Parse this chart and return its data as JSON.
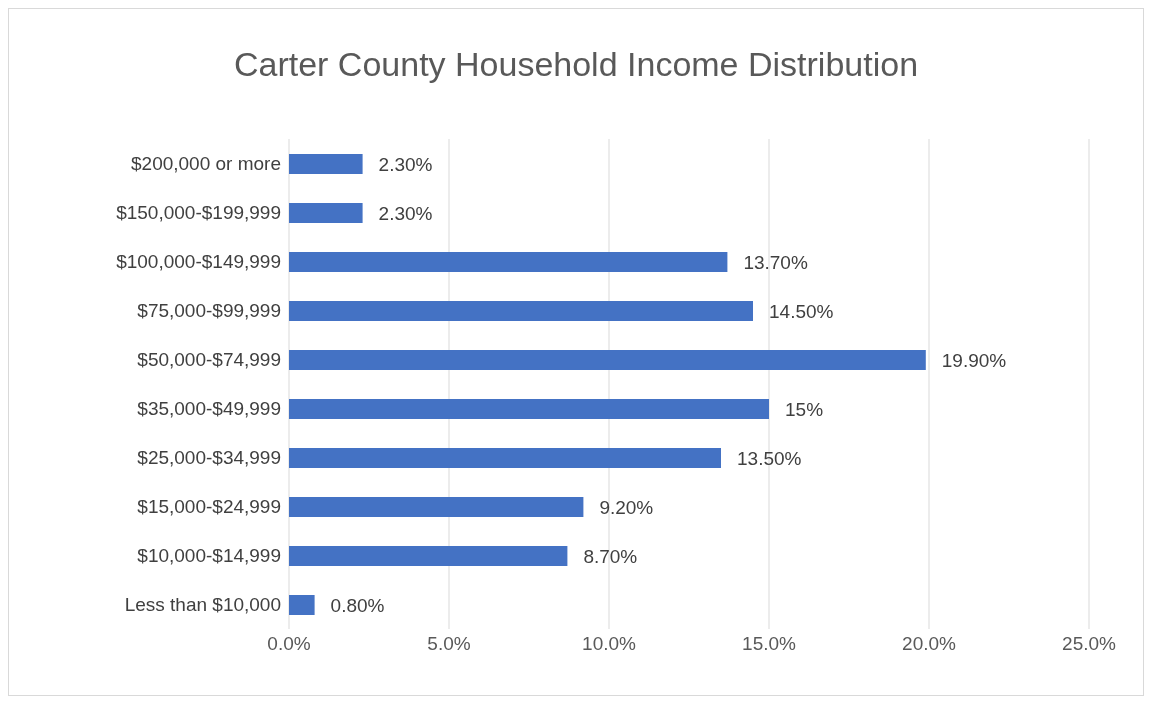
{
  "chart_data": {
    "type": "bar",
    "orientation": "horizontal",
    "title": "Carter County Household Income Distribution",
    "categories": [
      "$200,000 or more",
      "$150,000-$199,999",
      "$100,000-$149,999",
      "$75,000-$99,999",
      "$50,000-$74,999",
      "$35,000-$49,999",
      "$25,000-$34,999",
      "$15,000-$24,999",
      "$10,000-$14,999",
      "Less than $10,000"
    ],
    "values": [
      2.3,
      2.3,
      13.7,
      14.5,
      19.9,
      15,
      13.5,
      9.2,
      8.7,
      0.8
    ],
    "value_labels": [
      "2.30%",
      "2.30%",
      "13.70%",
      "14.50%",
      "19.90%",
      "15%",
      "13.50%",
      "9.20%",
      "8.70%",
      "0.80%"
    ],
    "color": "#4472c4",
    "xlim": [
      0,
      25
    ],
    "xticks": [
      {
        "value": 0,
        "label": "0.0%"
      },
      {
        "value": 5,
        "label": "5.0%"
      },
      {
        "value": 10,
        "label": "10.0%"
      },
      {
        "value": 15,
        "label": "15.0%"
      },
      {
        "value": 20,
        "label": "20.0%"
      },
      {
        "value": 25,
        "label": "25.0%"
      }
    ],
    "grid": "x"
  }
}
